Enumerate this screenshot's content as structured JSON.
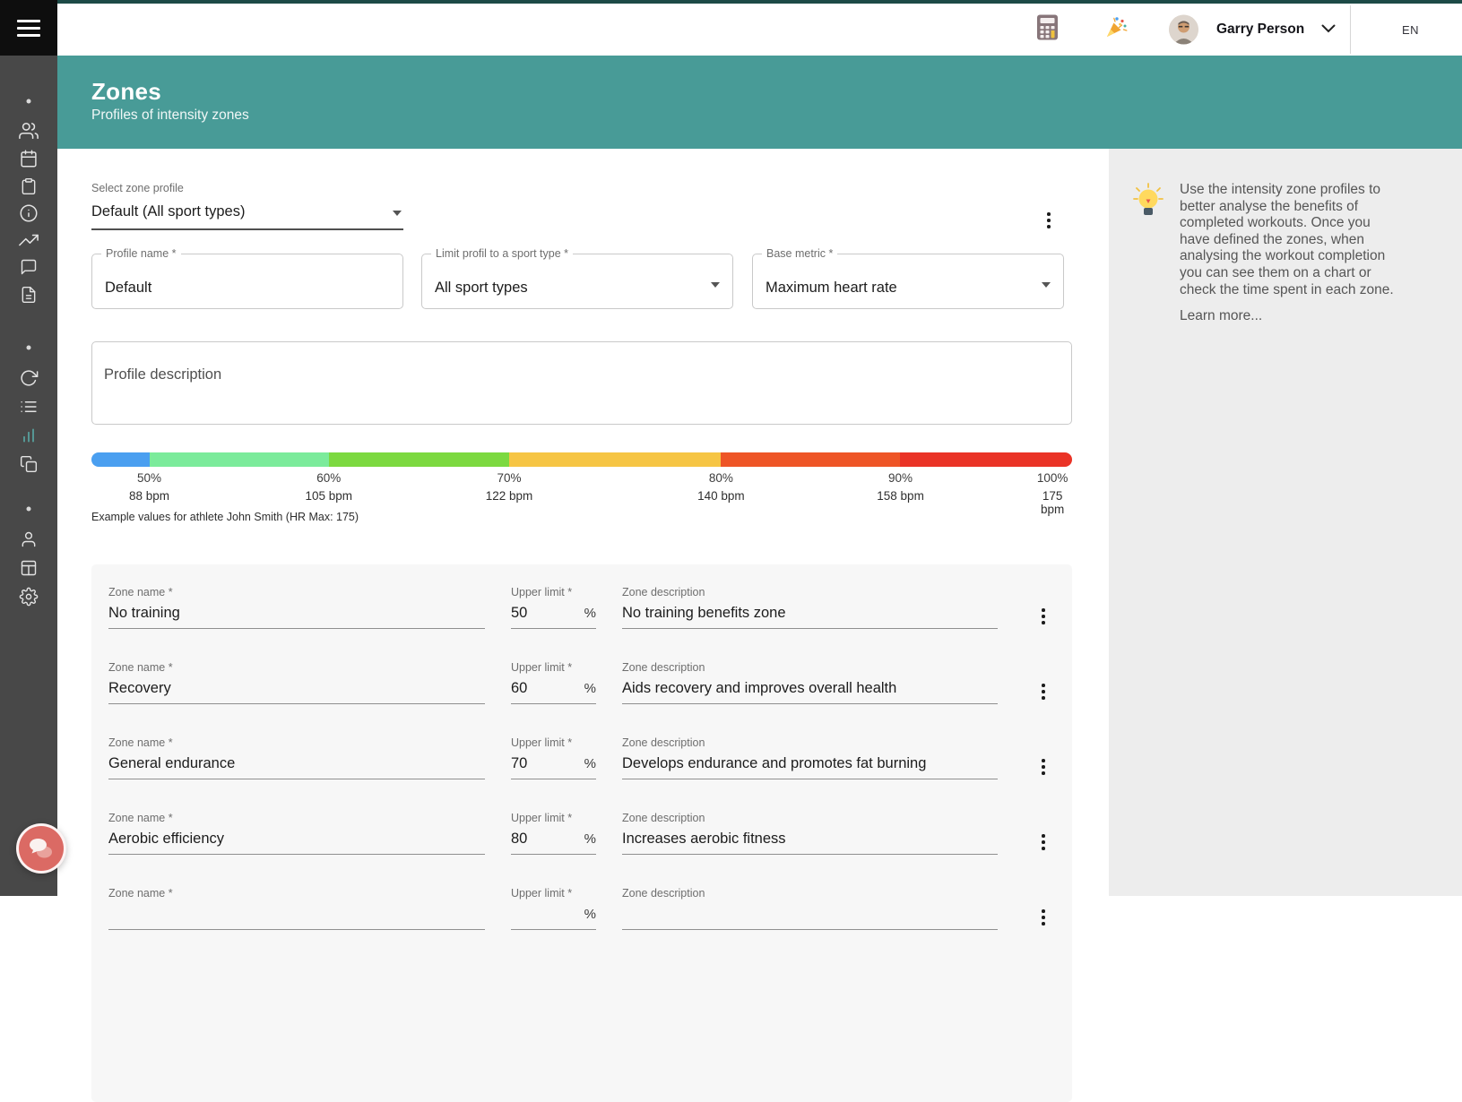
{
  "topbar": {
    "user_name": "Garry Person",
    "language": "EN",
    "icons": [
      "calculator-icon",
      "party-popper-icon",
      "avatar",
      "chevron-down-icon"
    ]
  },
  "sidebar": {
    "items": [
      "users",
      "calendar",
      "clipboard",
      "info",
      "trending-up",
      "messages",
      "documents",
      "sync",
      "list",
      "statistics",
      "copies",
      "profile",
      "layout",
      "settings"
    ],
    "active_item": "statistics"
  },
  "hero": {
    "title": "Zones",
    "subtitle": "Profiles of intensity zones"
  },
  "profile_form": {
    "select_label": "Select zone profile",
    "select_value": "Default (All sport types)",
    "name_label": "Profile name *",
    "name_value": "Default",
    "sport_label": "Limit profil to a sport type *",
    "sport_value": "All sport types",
    "metric_label": "Base metric *",
    "metric_value": "Maximum heart rate",
    "description_placeholder": "Profile description"
  },
  "zone_scale": {
    "segments": [
      {
        "color": "#4A9FF0",
        "width_pct": 5.9
      },
      {
        "color": "#7BEB9B",
        "width_pct": 18.3
      },
      {
        "color": "#7CD940",
        "width_pct": 18.4
      },
      {
        "color": "#F6C544",
        "width_pct": 21.6
      },
      {
        "color": "#EE5526",
        "width_pct": 18.3
      },
      {
        "color": "#EA3326",
        "width_pct": 17.5
      }
    ],
    "ticks": [
      {
        "percent": "50%",
        "bpm": "88 bpm",
        "pos_pct": 5.9
      },
      {
        "percent": "60%",
        "bpm": "105 bpm",
        "pos_pct": 24.2
      },
      {
        "percent": "70%",
        "bpm": "122 bpm",
        "pos_pct": 42.6
      },
      {
        "percent": "80%",
        "bpm": "140 bpm",
        "pos_pct": 64.2
      },
      {
        "percent": "90%",
        "bpm": "158 bpm",
        "pos_pct": 82.5
      },
      {
        "percent": "100%",
        "bpm": "175 bpm",
        "pos_pct": 98.0
      }
    ],
    "note": "Example values for athlete John Smith (HR Max: 175)"
  },
  "zones": {
    "name_label": "Zone name *",
    "limit_label": "Upper limit *",
    "desc_label": "Zone description",
    "percent_sign": "%",
    "rows": [
      {
        "name": "No training",
        "limit": "50",
        "description": "No training benefits zone"
      },
      {
        "name": "Recovery",
        "limit": "60",
        "description": "Aids recovery and improves overall health"
      },
      {
        "name": "General endurance",
        "limit": "70",
        "description": "Develops endurance and promotes fat burning"
      },
      {
        "name": "Aerobic efficiency",
        "limit": "80",
        "description": "Increases aerobic fitness"
      },
      {
        "name": "",
        "limit": "",
        "description": ""
      }
    ]
  },
  "info_panel": {
    "text": "Use the intensity zone profiles to better analyse the benefits of completed workouts. Once you have defined the zones, when analysing the workout completion you can see them on a chart or check the time spent in each zone.",
    "link_label": "Learn more..."
  },
  "colors": {
    "accent_teal": "#489B97",
    "sidebar": "#484848",
    "chat_button": "#DB6A64",
    "top_strip": "#1D4A47"
  }
}
